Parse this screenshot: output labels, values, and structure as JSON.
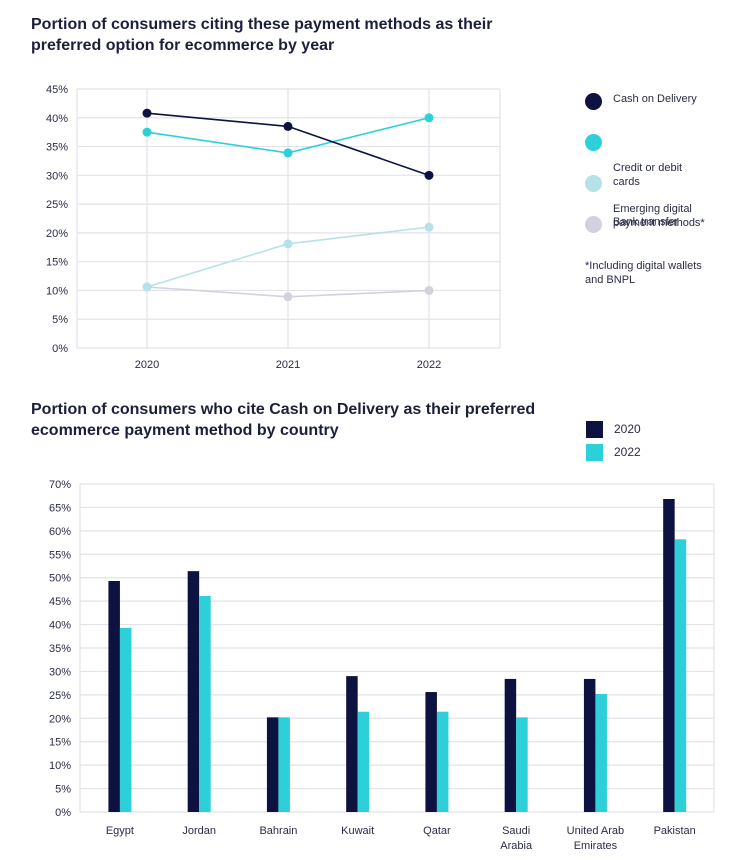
{
  "colors": {
    "cash": "#0d1240",
    "credit": "#2dd0d8",
    "emerging": "#b5e2e8",
    "bank": "#d2d1de",
    "grid": "#e2e3ea",
    "y2020": "#0d1240",
    "y2022": "#2dd0d8"
  },
  "chart_data": [
    {
      "type": "line",
      "title": "Portion of consumers citing these payment methods as their preferred option for ecommerce by year",
      "x": [
        "2020",
        "2021",
        "2022"
      ],
      "xlabel": "",
      "ylabel": "",
      "ylim": [
        0,
        45
      ],
      "yticks": [
        0,
        5,
        10,
        15,
        20,
        25,
        30,
        35,
        40,
        45
      ],
      "ytick_labels": [
        "0%",
        "5%",
        "10%",
        "15%",
        "20%",
        "25%",
        "30%",
        "35%",
        "40%",
        "45%"
      ],
      "grid": true,
      "legend_position": "right",
      "series": [
        {
          "name": "Cash on Delivery",
          "color_key": "cash",
          "values": [
            40.8,
            38.5,
            30.0
          ]
        },
        {
          "name": "Credit or debit cards",
          "color_key": "credit",
          "values": [
            37.5,
            33.9,
            40.0
          ]
        },
        {
          "name": "Emerging digital payment methods*",
          "color_key": "emerging",
          "values": [
            10.6,
            18.1,
            21.0
          ]
        },
        {
          "name": "Bank transfer",
          "color_key": "bank",
          "values": [
            10.6,
            8.9,
            10.0
          ]
        }
      ],
      "legend_labels": [
        "Cash on Delivery",
        "Credit or debit\ncards",
        "Emerging digital\npayment methods*",
        "Bank transfer"
      ],
      "annotation": "*Including digital wallets and BNPL"
    },
    {
      "type": "bar",
      "title": "Portion of consumers who cite Cash on Delivery as their preferred ecommerce payment method by country",
      "categories": [
        "Egypt",
        "Jordan",
        "Bahrain",
        "Kuwait",
        "Qatar",
        "Saudi Arabia",
        "United Arab Emirates",
        "Pakistan"
      ],
      "category_labels": [
        "Egypt",
        "Jordan",
        "Bahrain",
        "Kuwait",
        "Qatar",
        "Saudi\nArabia",
        "United Arab\nEmirates",
        "Pakistan"
      ],
      "xlabel": "",
      "ylabel": "",
      "ylim": [
        0,
        70
      ],
      "yticks": [
        0,
        5,
        10,
        15,
        20,
        25,
        30,
        35,
        40,
        45,
        50,
        55,
        60,
        65,
        70
      ],
      "ytick_labels": [
        "0%",
        "5%",
        "10%",
        "15%",
        "20%",
        "25%",
        "30%",
        "35%",
        "40%",
        "45%",
        "50%",
        "55%",
        "60%",
        "65%",
        "70%"
      ],
      "grid": true,
      "legend_position": "top-right",
      "series": [
        {
          "name": "2020",
          "color_key": "y2020",
          "values": [
            49.3,
            51.4,
            20.2,
            29.0,
            25.6,
            28.4,
            28.4,
            66.8
          ]
        },
        {
          "name": "2022",
          "color_key": "y2022",
          "values": [
            39.3,
            46.1,
            20.2,
            21.4,
            21.4,
            20.2,
            25.2,
            58.2
          ]
        }
      ]
    }
  ]
}
